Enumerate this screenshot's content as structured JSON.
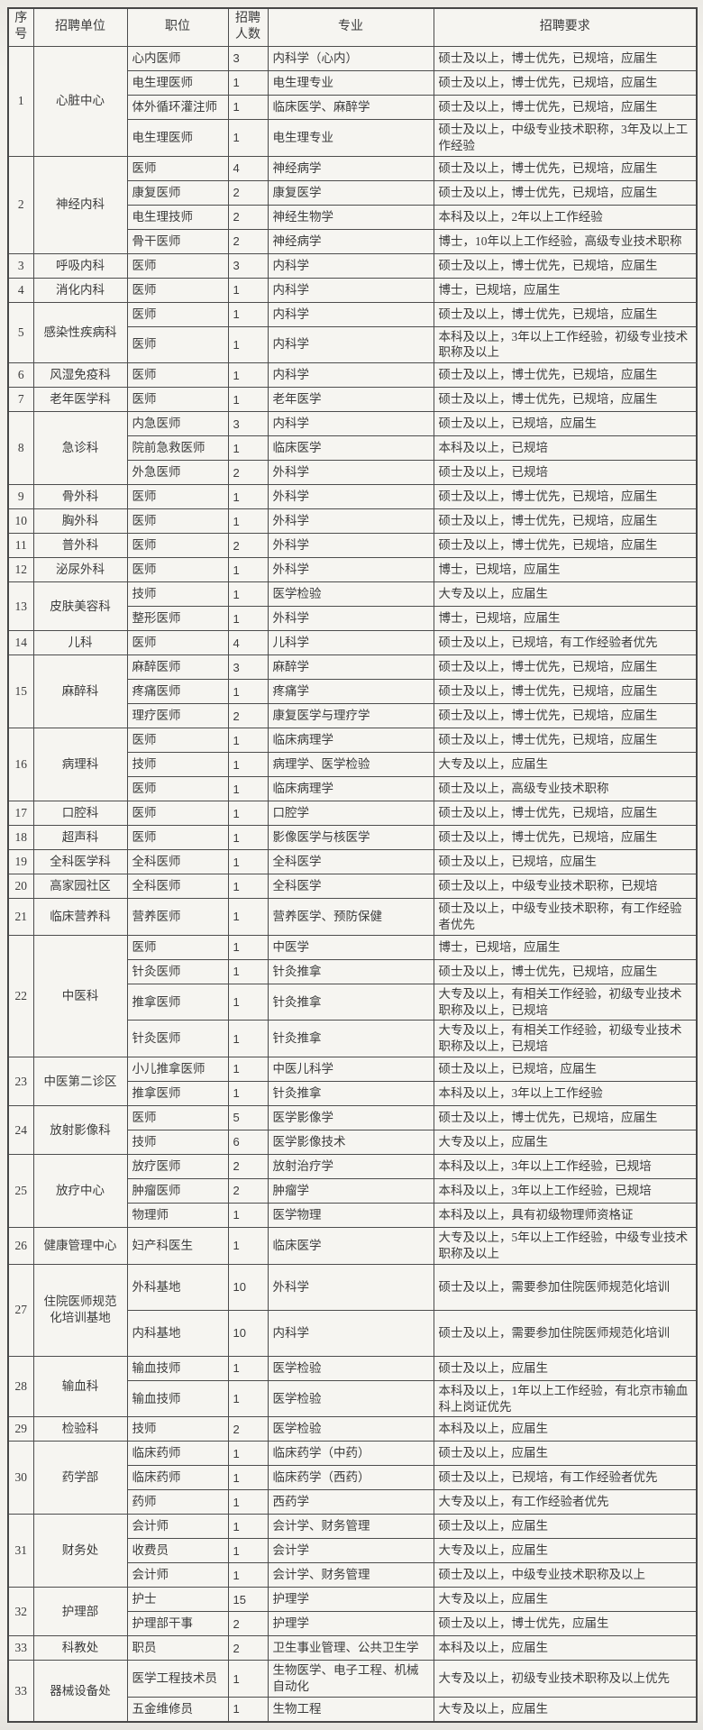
{
  "table": {
    "headers": {
      "no": "序号",
      "unit": "招聘单位",
      "position": "职位",
      "count": "招聘人数",
      "major": "专业",
      "requirement": "招聘要求"
    },
    "groups": [
      {
        "no": "1",
        "unit": "心脏中心",
        "rows": [
          {
            "position": "心内医师",
            "count": "3",
            "major": "内科学（心内）",
            "requirement": "硕士及以上，博士优先，已规培，应届生"
          },
          {
            "position": "电生理医师",
            "count": "1",
            "major": "电生理专业",
            "requirement": "硕士及以上，博士优先，已规培，应届生"
          },
          {
            "position": "体外循环灌注师",
            "count": "1",
            "major": "临床医学、麻醉学",
            "requirement": "硕士及以上，博士优先，已规培，应届生"
          },
          {
            "position": "电生理医师",
            "count": "1",
            "major": "电生理专业",
            "requirement": "硕士及以上，中级专业技术职称，3年及以上工作经验"
          }
        ]
      },
      {
        "no": "2",
        "unit": "神经内科",
        "rows": [
          {
            "position": "医师",
            "count": "4",
            "major": "神经病学",
            "requirement": "硕士及以上，博士优先，已规培，应届生"
          },
          {
            "position": "康复医师",
            "count": "2",
            "major": "康复医学",
            "requirement": "硕士及以上，博士优先，已规培，应届生"
          },
          {
            "position": "电生理技师",
            "count": "2",
            "major": "神经生物学",
            "requirement": "本科及以上，2年以上工作经验"
          },
          {
            "position": "骨干医师",
            "count": "2",
            "major": "神经病学",
            "requirement": "博士，10年以上工作经验，高级专业技术职称"
          }
        ]
      },
      {
        "no": "3",
        "unit": "呼吸内科",
        "rows": [
          {
            "position": "医师",
            "count": "3",
            "major": "内科学",
            "requirement": "硕士及以上，博士优先，已规培，应届生"
          }
        ]
      },
      {
        "no": "4",
        "unit": "消化内科",
        "rows": [
          {
            "position": "医师",
            "count": "1",
            "major": "内科学",
            "requirement": "博士，已规培，应届生"
          }
        ]
      },
      {
        "no": "5",
        "unit": "感染性疾病科",
        "rows": [
          {
            "position": "医师",
            "count": "1",
            "major": "内科学",
            "requirement": "硕士及以上，博士优先，已规培，应届生"
          },
          {
            "position": "医师",
            "count": "1",
            "major": "内科学",
            "requirement": "本科及以上，3年以上工作经验，初级专业技术职称及以上"
          }
        ]
      },
      {
        "no": "6",
        "unit": "风湿免疫科",
        "rows": [
          {
            "position": "医师",
            "count": "1",
            "major": "内科学",
            "requirement": "硕士及以上，博士优先，已规培，应届生"
          }
        ]
      },
      {
        "no": "7",
        "unit": "老年医学科",
        "rows": [
          {
            "position": "医师",
            "count": "1",
            "major": "老年医学",
            "requirement": "硕士及以上，博士优先，已规培，应届生"
          }
        ]
      },
      {
        "no": "8",
        "unit": "急诊科",
        "rows": [
          {
            "position": "内急医师",
            "count": "3",
            "major": "内科学",
            "requirement": "硕士及以上，已规培，应届生"
          },
          {
            "position": "院前急救医师",
            "count": "1",
            "major": "临床医学",
            "requirement": "本科及以上，已规培"
          },
          {
            "position": "外急医师",
            "count": "2",
            "major": "外科学",
            "requirement": "硕士及以上，已规培"
          }
        ]
      },
      {
        "no": "9",
        "unit": "骨外科",
        "rows": [
          {
            "position": "医师",
            "count": "1",
            "major": "外科学",
            "requirement": "硕士及以上，博士优先，已规培，应届生"
          }
        ]
      },
      {
        "no": "10",
        "unit": "胸外科",
        "rows": [
          {
            "position": "医师",
            "count": "1",
            "major": "外科学",
            "requirement": "硕士及以上，博士优先，已规培，应届生"
          }
        ]
      },
      {
        "no": "11",
        "unit": "普外科",
        "rows": [
          {
            "position": "医师",
            "count": "2",
            "major": "外科学",
            "requirement": "硕士及以上，博士优先，已规培，应届生"
          }
        ]
      },
      {
        "no": "12",
        "unit": "泌尿外科",
        "rows": [
          {
            "position": "医师",
            "count": "1",
            "major": "外科学",
            "requirement": "博士，已规培，应届生"
          }
        ]
      },
      {
        "no": "13",
        "unit": "皮肤美容科",
        "rows": [
          {
            "position": "技师",
            "count": "1",
            "major": "医学检验",
            "requirement": "大专及以上，应届生"
          },
          {
            "position": "整形医师",
            "count": "1",
            "major": "外科学",
            "requirement": "博士，已规培，应届生"
          }
        ]
      },
      {
        "no": "14",
        "unit": "儿科",
        "rows": [
          {
            "position": "医师",
            "count": "4",
            "major": "儿科学",
            "requirement": "硕士及以上，已规培，有工作经验者优先"
          }
        ]
      },
      {
        "no": "15",
        "unit": "麻醉科",
        "rows": [
          {
            "position": "麻醉医师",
            "count": "3",
            "major": "麻醉学",
            "requirement": "硕士及以上，博士优先，已规培，应届生"
          },
          {
            "position": "疼痛医师",
            "count": "1",
            "major": "疼痛学",
            "requirement": "硕士及以上，博士优先，已规培，应届生"
          },
          {
            "position": "理疗医师",
            "count": "2",
            "major": "康复医学与理疗学",
            "requirement": "硕士及以上，博士优先，已规培，应届生"
          }
        ]
      },
      {
        "no": "16",
        "unit": "病理科",
        "rows": [
          {
            "position": "医师",
            "count": "1",
            "major": "临床病理学",
            "requirement": "硕士及以上，博士优先，已规培，应届生"
          },
          {
            "position": "技师",
            "count": "1",
            "major": "病理学、医学检验",
            "requirement": "大专及以上，应届生"
          },
          {
            "position": "医师",
            "count": "1",
            "major": "临床病理学",
            "requirement": "硕士及以上，高级专业技术职称"
          }
        ]
      },
      {
        "no": "17",
        "unit": "口腔科",
        "rows": [
          {
            "position": "医师",
            "count": "1",
            "major": "口腔学",
            "requirement": "硕士及以上，博士优先，已规培，应届生"
          }
        ]
      },
      {
        "no": "18",
        "unit": "超声科",
        "rows": [
          {
            "position": "医师",
            "count": "1",
            "major": "影像医学与核医学",
            "requirement": "硕士及以上，博士优先，已规培，应届生"
          }
        ]
      },
      {
        "no": "19",
        "unit": "全科医学科",
        "rows": [
          {
            "position": "全科医师",
            "count": "1",
            "major": "全科医学",
            "requirement": "硕士及以上，已规培，应届生"
          }
        ]
      },
      {
        "no": "20",
        "unit": "高家园社区",
        "rows": [
          {
            "position": "全科医师",
            "count": "1",
            "major": "全科医学",
            "requirement": "硕士及以上，中级专业技术职称，已规培"
          }
        ]
      },
      {
        "no": "21",
        "unit": "临床营养科",
        "rows": [
          {
            "position": "营养医师",
            "count": "1",
            "major": "营养医学、预防保健",
            "requirement": "硕士及以上，中级专业技术职称，有工作经验者优先"
          }
        ]
      },
      {
        "no": "22",
        "unit": "中医科",
        "rows": [
          {
            "position": "医师",
            "count": "1",
            "major": "中医学",
            "requirement": "博士，已规培，应届生"
          },
          {
            "position": "针灸医师",
            "count": "1",
            "major": "针灸推拿",
            "requirement": "硕士及以上，博士优先，已规培，应届生"
          },
          {
            "position": "推拿医师",
            "count": "1",
            "major": "针灸推拿",
            "requirement": "大专及以上，有相关工作经验，初级专业技术职称及以上，已规培"
          },
          {
            "position": "针灸医师",
            "count": "1",
            "major": "针灸推拿",
            "requirement": "大专及以上，有相关工作经验，初级专业技术职称及以上，已规培"
          }
        ]
      },
      {
        "no": "23",
        "unit": "中医第二诊区",
        "rows": [
          {
            "position": "小儿推拿医师",
            "count": "1",
            "major": "中医儿科学",
            "requirement": "硕士及以上，已规培，应届生"
          },
          {
            "position": "推拿医师",
            "count": "1",
            "major": "针灸推拿",
            "requirement": "本科及以上，3年以上工作经验"
          }
        ]
      },
      {
        "no": "24",
        "unit": "放射影像科",
        "rows": [
          {
            "position": "医师",
            "count": "5",
            "major": "医学影像学",
            "requirement": "硕士及以上，博士优先，已规培，应届生"
          },
          {
            "position": "技师",
            "count": "6",
            "major": "医学影像技术",
            "requirement": "大专及以上，应届生"
          }
        ]
      },
      {
        "no": "25",
        "unit": "放疗中心",
        "rows": [
          {
            "position": "放疗医师",
            "count": "2",
            "major": "放射治疗学",
            "requirement": "本科及以上，3年以上工作经验，已规培"
          },
          {
            "position": "肿瘤医师",
            "count": "2",
            "major": "肿瘤学",
            "requirement": "本科及以上，3年以上工作经验，已规培"
          },
          {
            "position": "物理师",
            "count": "1",
            "major": "医学物理",
            "requirement": "本科及以上，具有初级物理师资格证"
          }
        ]
      },
      {
        "no": "26",
        "unit": "健康管理中心",
        "rows": [
          {
            "position": "妇产科医生",
            "count": "1",
            "major": "临床医学",
            "requirement": "大专及以上，5年以上工作经验，中级专业技术职称及以上"
          }
        ]
      },
      {
        "no": "27",
        "unit": "住院医师规范化培训基地",
        "rows": [
          {
            "position": "外科基地",
            "count": "10",
            "major": "外科学",
            "requirement": "硕士及以上，需要参加住院医师规范化培训",
            "tall": true
          },
          {
            "position": "内科基地",
            "count": "10",
            "major": "内科学",
            "requirement": "硕士及以上，需要参加住院医师规范化培训",
            "tall": true
          }
        ]
      },
      {
        "no": "28",
        "unit": "输血科",
        "rows": [
          {
            "position": "输血技师",
            "count": "1",
            "major": "医学检验",
            "requirement": "硕士及以上，应届生"
          },
          {
            "position": "输血技师",
            "count": "1",
            "major": "医学检验",
            "requirement": "本科及以上，1年以上工作经验，有北京市输血科上岗证优先"
          }
        ]
      },
      {
        "no": "29",
        "unit": "检验科",
        "rows": [
          {
            "position": "技师",
            "count": "2",
            "major": "医学检验",
            "requirement": "本科及以上，应届生"
          }
        ]
      },
      {
        "no": "30",
        "unit": "药学部",
        "rows": [
          {
            "position": "临床药师",
            "count": "1",
            "major": "临床药学（中药）",
            "requirement": "硕士及以上，应届生"
          },
          {
            "position": "临床药师",
            "count": "1",
            "major": "临床药学（西药）",
            "requirement": "硕士及以上，已规培，有工作经验者优先"
          },
          {
            "position": "药师",
            "count": "1",
            "major": "西药学",
            "requirement": "大专及以上，有工作经验者优先"
          }
        ]
      },
      {
        "no": "31",
        "unit": "财务处",
        "rows": [
          {
            "position": "会计师",
            "count": "1",
            "major": "会计学、财务管理",
            "requirement": "硕士及以上，应届生"
          },
          {
            "position": "收费员",
            "count": "1",
            "major": "会计学",
            "requirement": "大专及以上，应届生"
          },
          {
            "position": "会计师",
            "count": "1",
            "major": "会计学、财务管理",
            "requirement": "硕士及以上，中级专业技术职称及以上"
          }
        ]
      },
      {
        "no": "32",
        "unit": "护理部",
        "rows": [
          {
            "position": "护士",
            "count": "15",
            "major": "护理学",
            "requirement": "大专及以上，应届生"
          },
          {
            "position": "护理部干事",
            "count": "2",
            "major": "护理学",
            "requirement": "硕士及以上，博士优先，应届生"
          }
        ]
      },
      {
        "no": "33",
        "unit": "科教处",
        "rows": [
          {
            "position": "职员",
            "count": "2",
            "major": "卫生事业管理、公共卫生学",
            "requirement": "本科及以上，应届生"
          }
        ]
      },
      {
        "no": "33",
        "unit": "器械设备处",
        "rows": [
          {
            "position": "医学工程技术员",
            "count": "1",
            "major": "生物医学、电子工程、机械自动化",
            "requirement": "大专及以上，初级专业技术职称及以上优先"
          },
          {
            "position": "五金维修员",
            "count": "1",
            "major": "生物工程",
            "requirement": "大专及以上，应届生"
          }
        ]
      }
    ]
  }
}
